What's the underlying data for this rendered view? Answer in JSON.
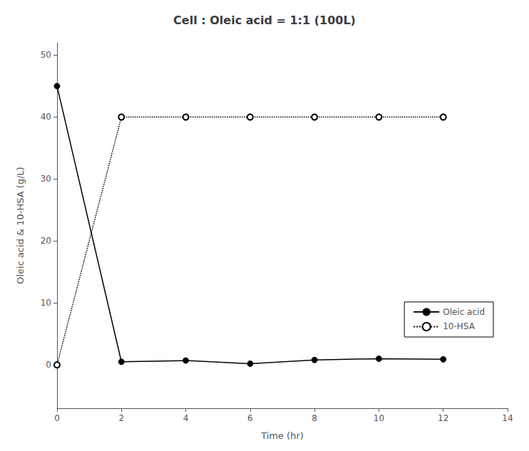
{
  "chart_data": {
    "type": "line",
    "title": "Cell : Oleic acid = 1:1 (100L)",
    "xlabel": "Time (hr)",
    "ylabel": "Oleic acid & 10-HSA (g/L)",
    "series": [
      {
        "name": "Oleic acid",
        "color": "#000000",
        "marker": "circle",
        "line_style": "solid",
        "x": [
          0,
          2,
          4,
          6,
          8,
          10,
          12
        ],
        "values": [
          45,
          0.5,
          0.7,
          0.2,
          0.8,
          1.0,
          0.9
        ]
      },
      {
        "name": "10-HSA",
        "color": "#000000",
        "marker": "emptyCircle",
        "line_style": "dotted",
        "x": [
          0,
          2,
          4,
          6,
          8,
          10,
          12
        ],
        "values": [
          0,
          40,
          40,
          40,
          40,
          40,
          40
        ]
      }
    ],
    "xlim": [
      0,
      14
    ],
    "xticks": [
      0,
      2,
      4,
      6,
      8,
      10,
      12,
      14
    ],
    "ylim": [
      -7,
      52
    ],
    "yticks": [
      0,
      10,
      20,
      30,
      40,
      50
    ],
    "legend": "lower right",
    "grid": false
  }
}
